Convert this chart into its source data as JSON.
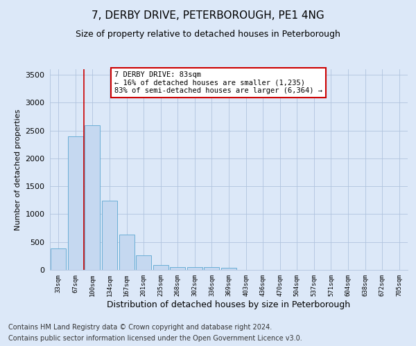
{
  "title": "7, DERBY DRIVE, PETERBOROUGH, PE1 4NG",
  "subtitle": "Size of property relative to detached houses in Peterborough",
  "xlabel": "Distribution of detached houses by size in Peterborough",
  "ylabel": "Number of detached properties",
  "footer_line1": "Contains HM Land Registry data © Crown copyright and database right 2024.",
  "footer_line2": "Contains public sector information licensed under the Open Government Licence v3.0.",
  "categories": [
    "33sqm",
    "67sqm",
    "100sqm",
    "134sqm",
    "167sqm",
    "201sqm",
    "235sqm",
    "268sqm",
    "302sqm",
    "336sqm",
    "369sqm",
    "403sqm",
    "436sqm",
    "470sqm",
    "504sqm",
    "537sqm",
    "571sqm",
    "604sqm",
    "638sqm",
    "672sqm",
    "705sqm"
  ],
  "bar_values": [
    390,
    2400,
    2600,
    1240,
    630,
    255,
    90,
    55,
    55,
    45,
    35,
    0,
    0,
    0,
    0,
    0,
    0,
    0,
    0,
    0,
    0
  ],
  "bar_color": "#c5d8f0",
  "bar_edge_color": "#6aaed6",
  "annotation_text": "7 DERBY DRIVE: 83sqm\n← 16% of detached houses are smaller (1,235)\n83% of semi-detached houses are larger (6,364) →",
  "annotation_box_color": "#ffffff",
  "annotation_box_edge_color": "#cc0000",
  "vline_x": 1.5,
  "vline_color": "#cc0000",
  "ylim": [
    0,
    3600
  ],
  "yticks": [
    0,
    500,
    1000,
    1500,
    2000,
    2500,
    3000,
    3500
  ],
  "bg_color": "#dce8f8",
  "plot_bg_color": "#dce8f8",
  "grid_color": "#b0c4de",
  "title_fontsize": 11,
  "subtitle_fontsize": 9,
  "xlabel_fontsize": 9,
  "ylabel_fontsize": 8,
  "footer_fontsize": 7,
  "annot_fontsize": 7.5
}
